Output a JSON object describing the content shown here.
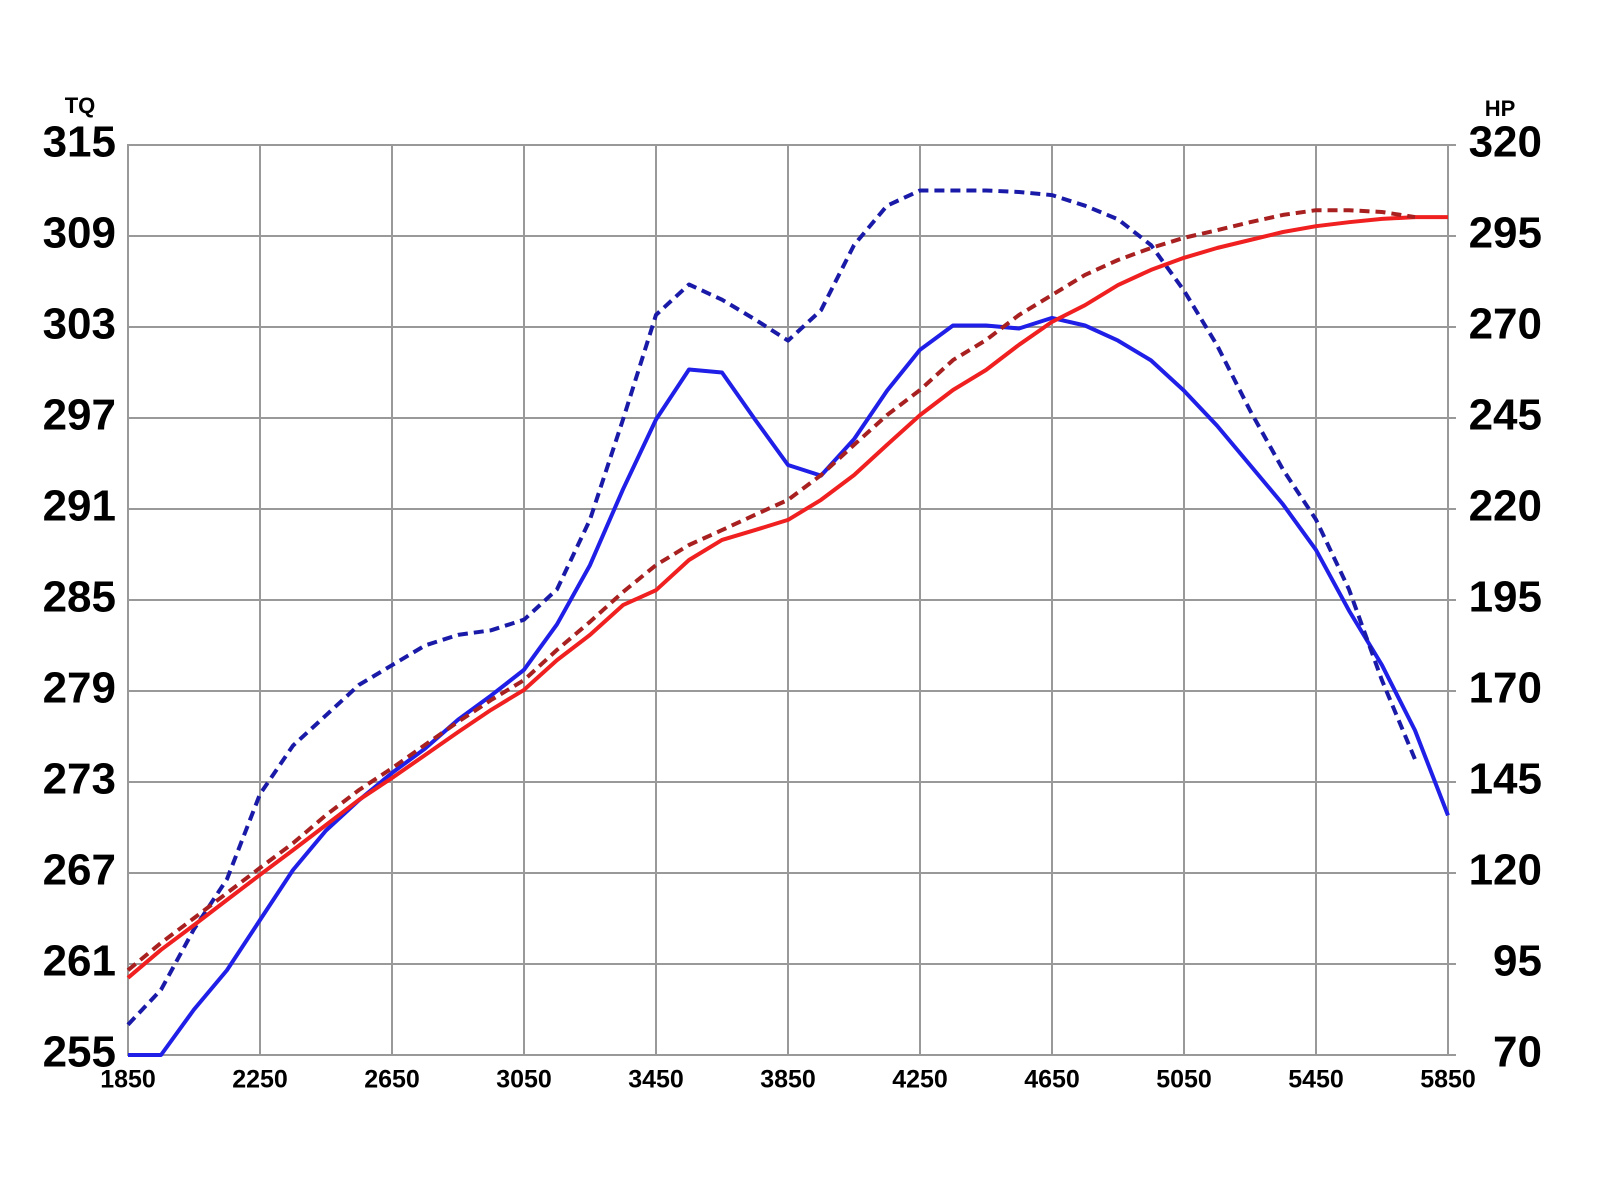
{
  "chart_data": {
    "type": "line",
    "ylabel": "TQ",
    "y2label": "HP",
    "x": [
      1850,
      1950,
      2050,
      2150,
      2250,
      2350,
      2450,
      2550,
      2650,
      2750,
      2850,
      2950,
      3050,
      3150,
      3250,
      3350,
      3450,
      3550,
      3650,
      3750,
      3850,
      3950,
      4050,
      4150,
      4250,
      4350,
      4450,
      4550,
      4650,
      4750,
      4850,
      4950,
      5050,
      5150,
      5250,
      5350,
      5450,
      5550,
      5650,
      5750,
      5850
    ],
    "xlim": [
      1850,
      5850
    ],
    "xticks": [
      1850,
      2250,
      2650,
      3050,
      3450,
      3850,
      4250,
      4650,
      5050,
      5450,
      5850
    ],
    "ylim": [
      255,
      315
    ],
    "yticks": [
      255,
      261,
      267,
      273,
      279,
      285,
      291,
      297,
      303,
      309,
      315
    ],
    "y2lim": [
      70,
      320
    ],
    "y2ticks": [
      70,
      95,
      120,
      145,
      170,
      195,
      220,
      245,
      270,
      295,
      320
    ],
    "grid": true,
    "series": [
      {
        "color": "#1f1fe8",
        "dash": false,
        "values": [
          255,
          255,
          258.0,
          260.6,
          263.9,
          267.2,
          269.8,
          271.8,
          273.6,
          275.2,
          277.1,
          278.7,
          280.4,
          283.4,
          287.3,
          292.3,
          296.9,
          300.2,
          300.0,
          296.9,
          293.9,
          293.2,
          295.6,
          298.8,
          301.5,
          303.1,
          303.1,
          302.9,
          303.6,
          303.1,
          302.1,
          300.8,
          298.8,
          296.5,
          293.9,
          291.3,
          288.3,
          284.3,
          280.7,
          276.4,
          270.8
        ]
      },
      {
        "color": "#1a1aa8",
        "dash": true,
        "values": [
          257.0,
          259.3,
          263.3,
          266.6,
          272.2,
          275.4,
          277.4,
          279.4,
          280.7,
          282.0,
          282.7,
          283.0,
          283.7,
          285.7,
          290.3,
          296.9,
          303.8,
          305.8,
          304.8,
          303.5,
          302.1,
          304.1,
          308.4,
          311.0,
          312.0,
          312.0,
          312.0,
          311.9,
          311.7,
          311.0,
          310.1,
          308.4,
          305.4,
          301.8,
          297.5,
          293.6,
          290.3,
          285.7,
          279.7,
          274.5,
          null
        ]
      },
      {
        "color": "#f02020",
        "dash": false,
        "axis": "y2",
        "values": [
          91.2,
          98.9,
          105.7,
          112.6,
          119.5,
          126.3,
          133.2,
          140.1,
          146.1,
          152.4,
          158.7,
          164.8,
          170.3,
          178.5,
          185.4,
          193.6,
          197.7,
          206.0,
          211.5,
          214.2,
          217.0,
          222.5,
          229.3,
          237.6,
          245.8,
          252.7,
          258.2,
          265.1,
          271.4,
          276.0,
          281.5,
          285.7,
          289.0,
          291.7,
          293.9,
          296.1,
          297.7,
          298.8,
          299.7,
          300.2,
          300.2
        ]
      },
      {
        "color": "#a82020",
        "dash": true,
        "axis": "y2",
        "values": [
          93.3,
          100.8,
          107.6,
          114.5,
          121.4,
          128.2,
          135.9,
          142.8,
          148.8,
          155.2,
          161.5,
          167.5,
          173.0,
          181.3,
          189.0,
          197.2,
          204.6,
          210.1,
          214.2,
          218.4,
          222.5,
          229.3,
          237.6,
          245.8,
          252.7,
          260.9,
          266.4,
          273.3,
          278.8,
          284.3,
          288.4,
          291.7,
          294.5,
          296.6,
          298.8,
          300.8,
          302.1,
          302.1,
          301.6,
          300.2,
          null
        ]
      }
    ]
  }
}
